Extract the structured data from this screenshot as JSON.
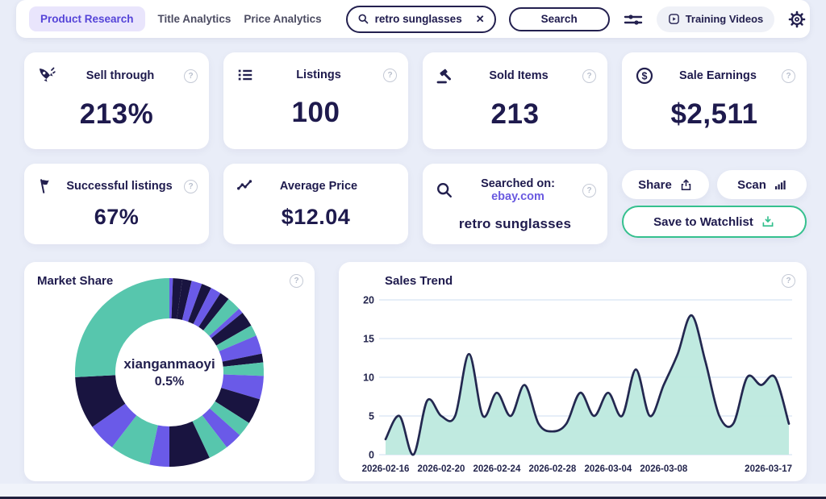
{
  "topbar": {
    "tabs": [
      {
        "label": "Product Research",
        "active": true
      },
      {
        "label": "Title Analytics",
        "active": false
      },
      {
        "label": "Price Analytics",
        "active": false
      }
    ],
    "search_value": "retro sunglasses",
    "search_button": "Search",
    "training_videos": "Training Videos"
  },
  "stats": [
    {
      "label": "Sell through",
      "value": "213%",
      "icon": "rocket",
      "help": true
    },
    {
      "label": "Listings",
      "value": "100",
      "icon": "list",
      "help": true
    },
    {
      "label": "Sold Items",
      "value": "213",
      "icon": "gavel",
      "help": true
    },
    {
      "label": "Sale Earnings",
      "value": "$2,511",
      "icon": "dollar-circle",
      "help": true
    },
    {
      "label": "Successful listings",
      "value": "67%",
      "icon": "flag",
      "help": true
    },
    {
      "label": "Average Price",
      "value": "$12.04",
      "icon": "trend-line",
      "help": false
    }
  ],
  "searched_on": {
    "label": "Searched on:",
    "site": "ebay.com",
    "query": "retro sunglasses"
  },
  "actions": {
    "share": "Share",
    "scan": "Scan",
    "watchlist": "Save to Watchlist"
  },
  "colors": {
    "accent_purple": "#5544d8",
    "navy_text": "#1e1a4d",
    "watchlist_green": "#35c08e",
    "page_background": "#e9edf8"
  },
  "chart_data": [
    {
      "type": "pie",
      "title": "Market Share",
      "center_label": "xianganmaoyi",
      "center_value": "0.5%",
      "legend": "none",
      "palette": {
        "teal": "#57c6ad",
        "navy": "#191440",
        "purple": "#6a5ae8"
      },
      "segments": [
        {
          "color": "purple",
          "value": 0.6
        },
        {
          "color": "navy",
          "value": 1.6
        },
        {
          "color": "navy",
          "value": 1.6
        },
        {
          "color": "purple",
          "value": 1.8
        },
        {
          "color": "navy",
          "value": 1.7
        },
        {
          "color": "purple",
          "value": 1.8
        },
        {
          "color": "navy",
          "value": 1.7
        },
        {
          "color": "teal",
          "value": 2.4
        },
        {
          "color": "purple",
          "value": 0.9
        },
        {
          "color": "navy",
          "value": 2.6
        },
        {
          "color": "teal",
          "value": 1.9
        },
        {
          "color": "purple",
          "value": 3.2
        },
        {
          "color": "navy",
          "value": 1.5
        },
        {
          "color": "teal",
          "value": 2.3
        },
        {
          "color": "purple",
          "value": 4.0
        },
        {
          "color": "navy",
          "value": 4.4
        },
        {
          "color": "teal",
          "value": 2.6
        },
        {
          "color": "purple",
          "value": 3.0
        },
        {
          "color": "teal",
          "value": 3.4
        },
        {
          "color": "navy",
          "value": 7.0
        },
        {
          "color": "purple",
          "value": 3.4
        },
        {
          "color": "teal",
          "value": 7.0
        },
        {
          "color": "purple",
          "value": 4.8
        },
        {
          "color": "navy",
          "value": 9.0
        },
        {
          "color": "teal",
          "value": 25.8
        }
      ]
    },
    {
      "type": "area",
      "title": "Sales Trend",
      "x_start": "2026-02-16",
      "x_end": "2026-03-17",
      "ylim": [
        0,
        20
      ],
      "yticks": [
        0,
        5,
        10,
        15,
        20
      ],
      "grid": "horizontal",
      "legend": "none",
      "line_color": "#232850",
      "fill_color": "#bde9de",
      "values": [
        2,
        5,
        0,
        7,
        5,
        5,
        13,
        5,
        8,
        5,
        9,
        4,
        3,
        4,
        8,
        5,
        8,
        5,
        11,
        5,
        9,
        13,
        18,
        12,
        5,
        4,
        10,
        9,
        10,
        4
      ],
      "x_tick_indices": [
        0,
        4,
        8,
        12,
        16,
        20,
        29
      ],
      "x_tick_labels": [
        "2026-02-16",
        "2026-02-20",
        "2026-02-24",
        "2026-02-28",
        "2026-03-04",
        "2026-03-08",
        "2026-03-17"
      ]
    }
  ]
}
